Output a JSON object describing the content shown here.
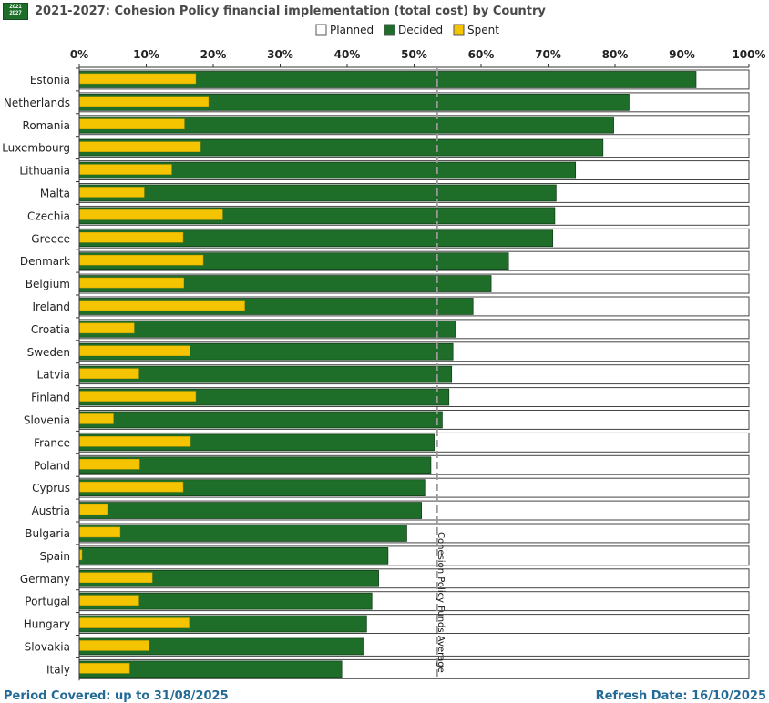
{
  "header": {
    "logo_line1": "2021",
    "logo_line2": "2027",
    "title": "2021-2027: Cohesion Policy financial implementation (total cost) by Country"
  },
  "footer": {
    "period": "Period Covered: up to 31/08/2025",
    "refresh": "Refresh Date: 16/10/2025"
  },
  "colors": {
    "planned": "#ffffff",
    "decided": "#1e6e2a",
    "spent": "#f5c400",
    "average_line": "#999999"
  },
  "chart_data": {
    "type": "bar",
    "orientation": "horizontal",
    "title": "2021-2027: Cohesion Policy financial implementation (total cost) by Country",
    "xlim": [
      0,
      100
    ],
    "x_ticks": [
      "0%",
      "10%",
      "20%",
      "30%",
      "40%",
      "50%",
      "60%",
      "70%",
      "80%",
      "90%",
      "100%"
    ],
    "legend_position": "top-center",
    "legend": [
      "Planned",
      "Decided",
      "Spent"
    ],
    "categories": [
      "Estonia",
      "Netherlands",
      "Romania",
      "Luxembourg",
      "Lithuania",
      "Malta",
      "Czechia",
      "Greece",
      "Denmark",
      "Belgium",
      "Ireland",
      "Croatia",
      "Sweden",
      "Latvia",
      "Finland",
      "Slovenia",
      "France",
      "Poland",
      "Cyprus",
      "Austria",
      "Bulgaria",
      "Spain",
      "Germany",
      "Portugal",
      "Hungary",
      "Slovakia",
      "Italy"
    ],
    "series": [
      {
        "name": "Planned",
        "values": [
          100,
          100,
          100,
          100,
          100,
          100,
          100,
          100,
          100,
          100,
          100,
          100,
          100,
          100,
          100,
          100,
          100,
          100,
          100,
          100,
          100,
          100,
          100,
          100,
          100,
          100,
          100
        ]
      },
      {
        "name": "Decided",
        "values": [
          92.1,
          82.1,
          79.8,
          78.2,
          74.1,
          71.2,
          71.0,
          70.7,
          64.1,
          61.5,
          58.8,
          56.2,
          55.8,
          55.6,
          55.2,
          54.2,
          53.0,
          52.5,
          51.6,
          51.1,
          48.9,
          46.1,
          44.7,
          43.7,
          42.9,
          42.5,
          39.2
        ]
      },
      {
        "name": "Spent",
        "values": [
          17.4,
          19.3,
          15.7,
          18.1,
          13.8,
          9.7,
          21.4,
          15.5,
          18.5,
          15.6,
          24.7,
          8.2,
          16.5,
          8.9,
          17.4,
          5.1,
          16.6,
          9.0,
          15.5,
          4.2,
          6.1,
          0.4,
          10.9,
          8.9,
          16.4,
          10.4,
          7.5
        ]
      }
    ],
    "average": {
      "value": 53.4,
      "label": "Cohesion Policy Funds Average"
    }
  }
}
